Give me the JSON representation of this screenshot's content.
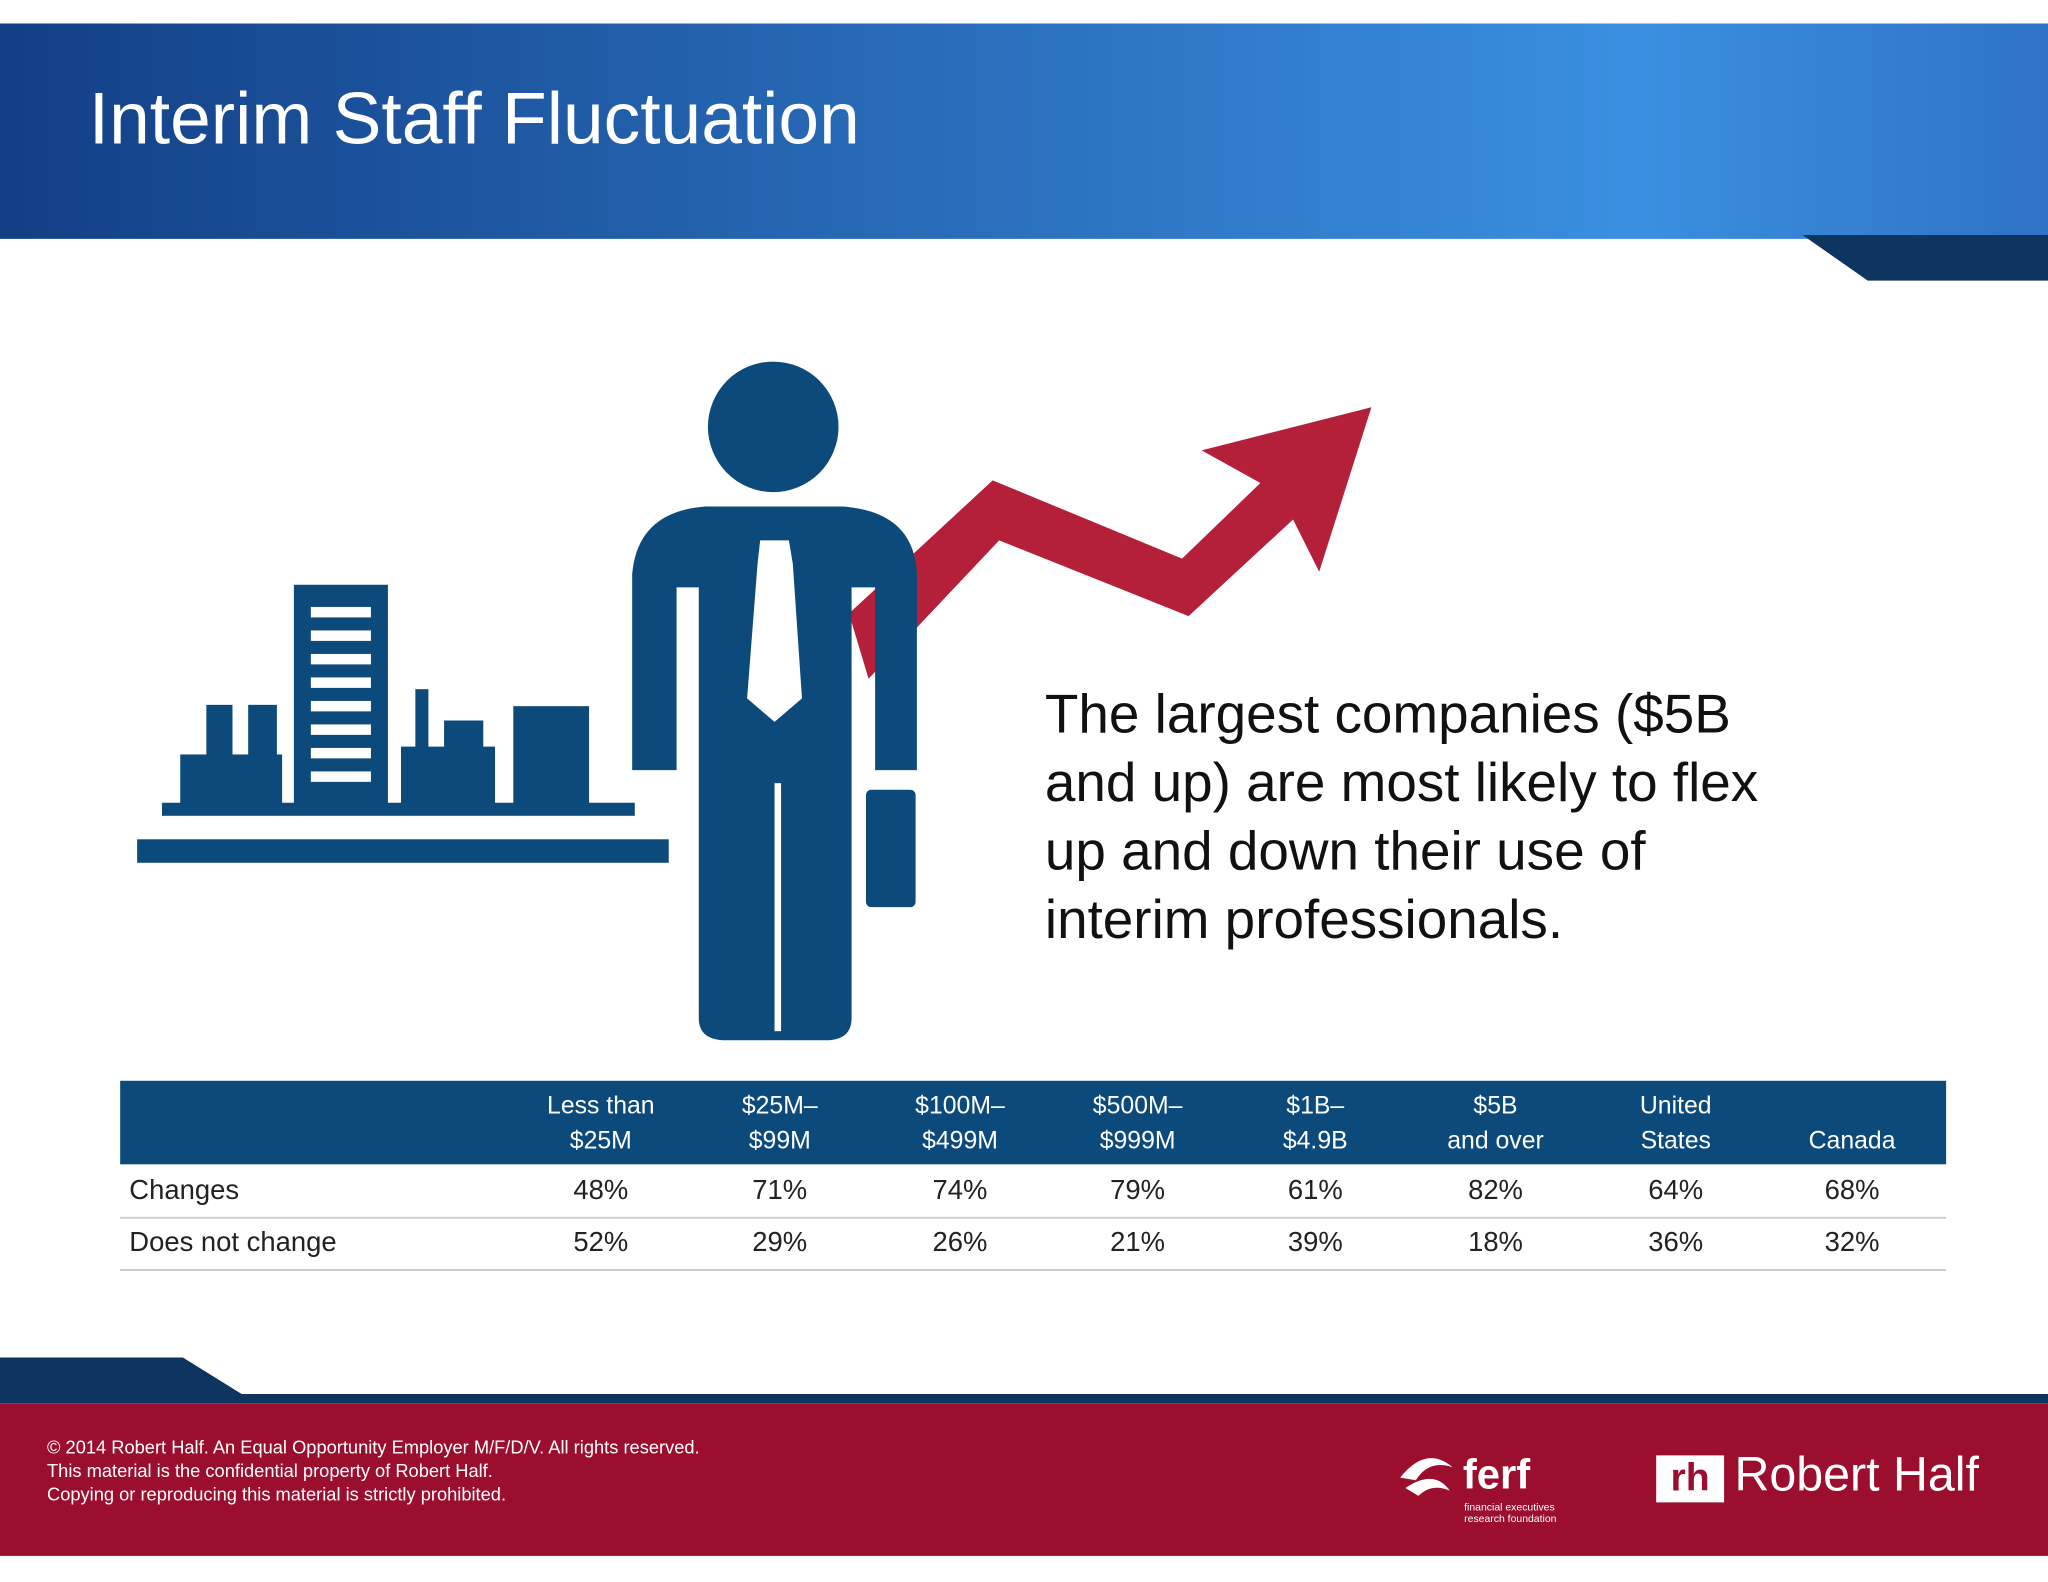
{
  "header": {
    "title": "Interim Staff Fluctuation"
  },
  "callout": {
    "lines": [
      "The largest companies ($5B",
      "and up) are most likely to flex",
      "up and down their use of",
      "interim professionals."
    ]
  },
  "table": {
    "columns": [
      [
        "Less than",
        "$25M"
      ],
      [
        "$25M–",
        "$99M"
      ],
      [
        "$100M–",
        "$499M"
      ],
      [
        "$500M–",
        "$999M"
      ],
      [
        "$1B–",
        "$4.9B"
      ],
      [
        "$5B",
        "and over"
      ],
      [
        "United",
        "States"
      ],
      [
        "Canada"
      ]
    ],
    "rows": [
      {
        "label": "Changes",
        "cells": [
          "48%",
          "71%",
          "74%",
          "79%",
          "61%",
          "82%",
          "64%",
          "68%"
        ]
      },
      {
        "label": "Does not change",
        "cells": [
          "52%",
          "29%",
          "26%",
          "21%",
          "39%",
          "18%",
          "36%",
          "32%"
        ]
      }
    ]
  },
  "footer": {
    "lines": [
      "© 2014 Robert Half. An Equal Opportunity Employer M/F/D/V. All rights reserved.",
      "This material is the confidential property of Robert Half.",
      "Copying or reproducing this material is strictly prohibited."
    ],
    "ferf": {
      "name": "ferf",
      "tagline": [
        "financial executives",
        "research foundation"
      ]
    },
    "robert_half": {
      "mark": "rh",
      "name": "Robert Half"
    }
  }
}
